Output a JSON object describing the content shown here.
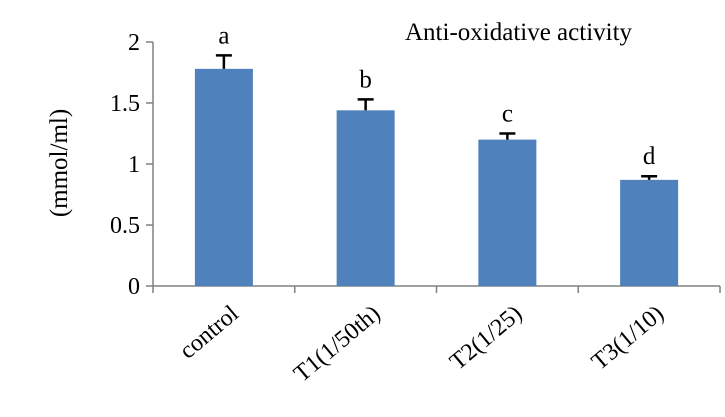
{
  "chart_data": {
    "type": "bar",
    "title": "Anti-oxidative activity",
    "ylabel": "(mmol/ml)",
    "xlabel": "",
    "categories": [
      "control",
      "T1(1/50th)",
      "T2(1/25)",
      "T3(1/10)"
    ],
    "values": [
      1.78,
      1.44,
      1.2,
      0.87
    ],
    "errors": [
      0.11,
      0.09,
      0.05,
      0.03
    ],
    "significance_letters": [
      "a",
      "b",
      "c",
      "d"
    ],
    "ylim": [
      0,
      2
    ],
    "yticks": [
      0,
      0.5,
      1,
      1.5,
      2
    ],
    "ytick_labels": [
      "0",
      "0.5",
      "1",
      "1.5",
      "2"
    ],
    "grid": false,
    "legend": "none",
    "colors": {
      "bar": "#4f81bd",
      "error_bar": "#000000",
      "axis": "#808080",
      "text": "#000000"
    }
  }
}
